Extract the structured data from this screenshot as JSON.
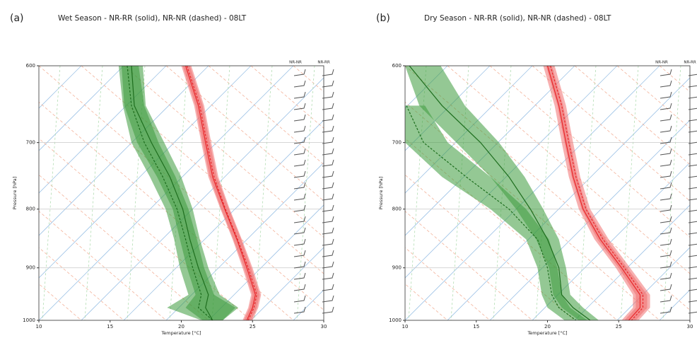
{
  "chart_data": [
    {
      "type": "skewt",
      "panel_label": "(a)",
      "title": "Wet Season - NR-RR (solid), NR-NR (dashed) - 08LT",
      "xlabel": "Temperature [°C]",
      "ylabel": "Pressure [hPa]",
      "barb_columns": [
        "NR-NR",
        "NR-RR"
      ],
      "xlim": [
        10,
        30
      ],
      "xticks": [
        10,
        15,
        20,
        25,
        30
      ],
      "ylim": [
        1000,
        600
      ],
      "yticks": [
        600,
        700,
        800,
        900,
        1000
      ],
      "y_scale": "log",
      "levels": [
        600,
        650,
        700,
        750,
        800,
        850,
        900,
        950,
        975,
        1000
      ],
      "series": [
        {
          "color": "#e8282b",
          "band_color": "#f07070",
          "style": "solid",
          "values": [
            20.3,
            21.2,
            21.7,
            22.2,
            23.05,
            23.9,
            24.6,
            25.2,
            25.0,
            24.6
          ],
          "band_low": [
            20.0,
            20.9,
            21.4,
            21.9,
            22.75,
            23.6,
            24.3,
            24.9,
            24.7,
            24.3
          ],
          "band_high": [
            20.6,
            21.5,
            22.0,
            22.5,
            23.35,
            24.2,
            24.9,
            25.5,
            25.3,
            24.9
          ]
        },
        {
          "color": "#e8282b",
          "band_color": "#f07070",
          "style": "dashed",
          "values": [
            20.4,
            21.3,
            21.8,
            22.3,
            23.1,
            23.95,
            24.7,
            25.3,
            25.1,
            24.7
          ],
          "band_low": [
            20.1,
            21.0,
            21.5,
            22.0,
            22.8,
            23.65,
            24.4,
            25.0,
            24.8,
            24.4
          ],
          "band_high": [
            20.7,
            21.6,
            22.1,
            22.6,
            23.4,
            24.25,
            25.0,
            25.6,
            25.4,
            25.0
          ]
        },
        {
          "color": "#1e6e1e",
          "band_color": "#3c9a3c",
          "style": "solid",
          "values": [
            16.5,
            16.7,
            17.9,
            19.2,
            20.1,
            20.6,
            21.2,
            21.9,
            21.7,
            22.2
          ],
          "band_low": [
            15.8,
            16.0,
            16.9,
            18.3,
            19.4,
            19.9,
            20.4,
            21.0,
            20.3,
            21.5
          ],
          "band_high": [
            17.3,
            17.5,
            18.8,
            20.0,
            20.8,
            21.3,
            21.9,
            22.7,
            24.0,
            22.9
          ]
        },
        {
          "color": "#1e6e1e",
          "band_color": "#3c9a3c",
          "style": "dashed",
          "values": [
            16.2,
            16.5,
            17.4,
            18.7,
            19.7,
            20.3,
            20.8,
            21.4,
            21.2,
            22.2
          ],
          "band_low": [
            15.6,
            15.9,
            16.5,
            17.8,
            18.9,
            19.5,
            19.9,
            20.5,
            19.0,
            21.4
          ],
          "band_high": [
            17.0,
            17.4,
            18.4,
            19.6,
            20.5,
            21.1,
            21.6,
            22.3,
            23.8,
            22.9
          ]
        }
      ]
    },
    {
      "type": "skewt",
      "panel_label": "(b)",
      "title": "Dry Season - NR-RR (solid), NR-NR (dashed) - 08LT",
      "xlabel": "Temperature [°C]",
      "ylabel": "Pressure [hPa]",
      "barb_columns": [
        "NR-NR",
        "NR-RR"
      ],
      "xlim": [
        10,
        30
      ],
      "xticks": [
        10,
        15,
        20,
        25,
        30
      ],
      "ylim": [
        1000,
        600
      ],
      "yticks": [
        600,
        700,
        800,
        900,
        1000
      ],
      "y_scale": "log",
      "levels": [
        600,
        650,
        700,
        750,
        800,
        850,
        900,
        950,
        975,
        1000
      ],
      "series": [
        {
          "color": "#e8282b",
          "band_color": "#f07070",
          "style": "solid",
          "values": [
            20.0,
            20.8,
            21.3,
            21.8,
            22.5,
            23.7,
            25.2,
            26.5,
            26.5,
            25.7
          ],
          "band_low": [
            19.7,
            20.5,
            21.0,
            21.5,
            22.2,
            23.3,
            24.8,
            26.0,
            26.0,
            25.2
          ],
          "band_high": [
            20.3,
            21.1,
            21.6,
            22.1,
            22.8,
            24.1,
            25.6,
            27.0,
            27.0,
            26.2
          ]
        },
        {
          "color": "#e8282b",
          "band_color": "#f07070",
          "style": "dashed",
          "values": [
            20.2,
            21.0,
            21.5,
            22.0,
            22.7,
            23.9,
            25.4,
            26.7,
            26.7,
            25.9
          ],
          "band_low": [
            19.9,
            20.7,
            21.2,
            21.7,
            22.4,
            23.5,
            25.0,
            26.2,
            26.2,
            25.4
          ],
          "band_high": [
            20.5,
            21.3,
            21.8,
            22.3,
            23.0,
            24.3,
            25.8,
            27.2,
            27.2,
            26.4
          ]
        },
        {
          "color": "#1e6e1e",
          "band_color": "#3c9a3c",
          "style": "solid",
          "values": [
            10.3,
            12.6,
            15.3,
            17.3,
            18.8,
            20.0,
            20.8,
            21.0,
            21.8,
            23.0
          ],
          "band_low": [
            10.0,
            11.0,
            13.6,
            16.0,
            17.8,
            19.2,
            20.1,
            20.4,
            21.0,
            22.2
          ],
          "band_high": [
            12.5,
            14.2,
            16.6,
            18.4,
            19.7,
            20.8,
            21.3,
            21.6,
            22.5,
            23.6
          ]
        },
        {
          "color": "#1e6e1e",
          "band_color": "#3c9a3c",
          "style": "dashed",
          "values": [
            null,
            10.1,
            11.3,
            14.3,
            17.3,
            19.3,
            20.0,
            20.3,
            20.8,
            22.0
          ],
          "band_low": [
            null,
            10.0,
            10.0,
            12.6,
            16.0,
            18.5,
            19.3,
            19.6,
            20.0,
            21.2
          ],
          "band_high": [
            null,
            11.4,
            13.0,
            16.0,
            18.5,
            20.1,
            20.7,
            21.0,
            21.6,
            22.8
          ]
        }
      ]
    }
  ]
}
